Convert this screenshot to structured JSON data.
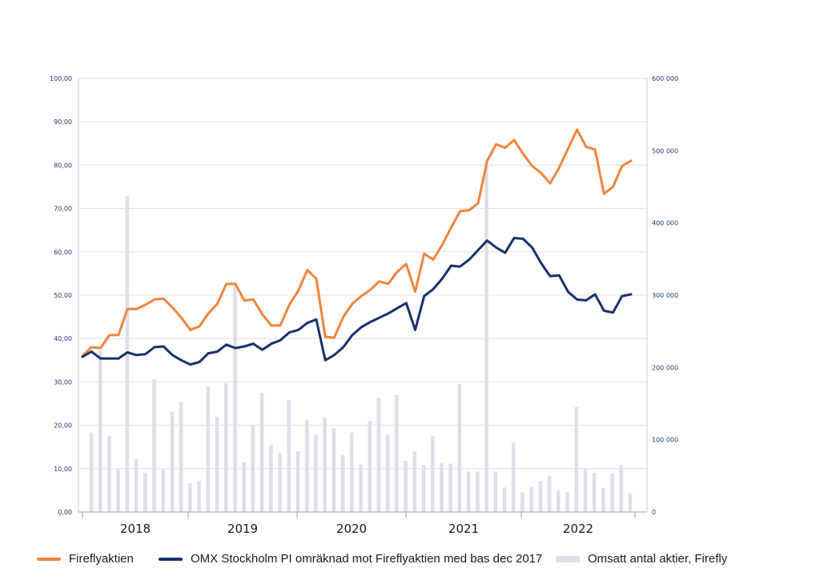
{
  "chart_data": {
    "type": "line",
    "x_tick_labels": [
      "2018",
      "2019",
      "2020",
      "2021",
      "2022"
    ],
    "y_left": {
      "range": [
        0,
        100
      ],
      "ticks": [
        "0,00",
        "10,00",
        "20,00",
        "30,00",
        "40,00",
        "50,00",
        "60,00",
        "70,00",
        "80,00",
        "90,00",
        "100,00"
      ]
    },
    "y_right": {
      "range": [
        0,
        600000
      ],
      "ticks": [
        "0",
        "100 000",
        "200 000",
        "300 000",
        "400 000",
        "500 000",
        "600 000"
      ]
    },
    "grid": true,
    "legend_position": "bottom",
    "series": [
      {
        "name": "Fireflyaktien",
        "kind": "line",
        "axis": "left",
        "color": "#f0843c",
        "values": [
          36.0,
          38.0,
          37.8,
          40.8,
          40.8,
          46.8,
          46.8,
          47.8,
          49.0,
          49.2,
          47.2,
          44.8,
          42.0,
          42.8,
          45.8,
          48.0,
          52.6,
          52.6,
          48.8,
          49.0,
          45.6,
          43.0,
          43.0,
          47.8,
          51.0,
          55.8,
          53.8,
          40.4,
          40.2,
          45.0,
          48.0,
          49.8,
          51.2,
          53.2,
          52.6,
          55.4,
          57.2,
          50.8,
          59.6,
          58.2,
          61.6,
          65.6,
          69.4,
          69.6,
          71.2,
          81.0,
          84.8,
          84.0,
          85.8,
          82.6,
          79.8,
          78.2,
          75.8,
          79.4,
          83.8,
          88.2,
          84.2,
          83.6,
          73.4,
          75.0,
          79.8,
          81.0
        ]
      },
      {
        "name": "OMX Stockholm PI omräknad mot Fireflyaktien med bas dec 2017",
        "kind": "line",
        "axis": "left",
        "color": "#14326c",
        "values": [
          35.8,
          37.0,
          35.4,
          35.4,
          35.4,
          36.8,
          36.2,
          36.4,
          38.0,
          38.2,
          36.2,
          35.0,
          34.0,
          34.6,
          36.6,
          37.0,
          38.6,
          37.8,
          38.2,
          38.8,
          37.4,
          38.8,
          39.6,
          41.4,
          42.0,
          43.6,
          44.4,
          35.0,
          36.2,
          38.0,
          40.8,
          42.6,
          43.8,
          44.8,
          45.8,
          47.0,
          48.2,
          42.0,
          49.8,
          51.4,
          53.8,
          56.8,
          56.6,
          58.2,
          60.4,
          62.6,
          61.0,
          59.8,
          63.2,
          63.0,
          61.0,
          57.4,
          54.4,
          54.6,
          50.8,
          49.0,
          48.8,
          50.2,
          46.4,
          46.0,
          49.8,
          50.2
        ]
      },
      {
        "name": "Omsatt antal aktier, Firefly",
        "kind": "bar",
        "axis": "right",
        "color": "#dcdfe8",
        "values": [
          110000,
          223000,
          105000,
          59000,
          437000,
          73000,
          54000,
          184000,
          59000,
          139000,
          152000,
          40000,
          43000,
          174000,
          132000,
          178000,
          312000,
          69000,
          120000,
          165000,
          93000,
          82000,
          155000,
          84000,
          127000,
          107000,
          131000,
          116000,
          79000,
          110000,
          66000,
          126000,
          158000,
          107000,
          162000,
          71000,
          84000,
          65000,
          105000,
          68000,
          67000,
          177000,
          56000,
          56000,
          480000,
          56000,
          34000,
          96000,
          27000,
          35000,
          43000,
          50000,
          30000,
          28000,
          145000,
          60000,
          54000,
          33000,
          53000,
          65000,
          26000
        ]
      }
    ]
  }
}
